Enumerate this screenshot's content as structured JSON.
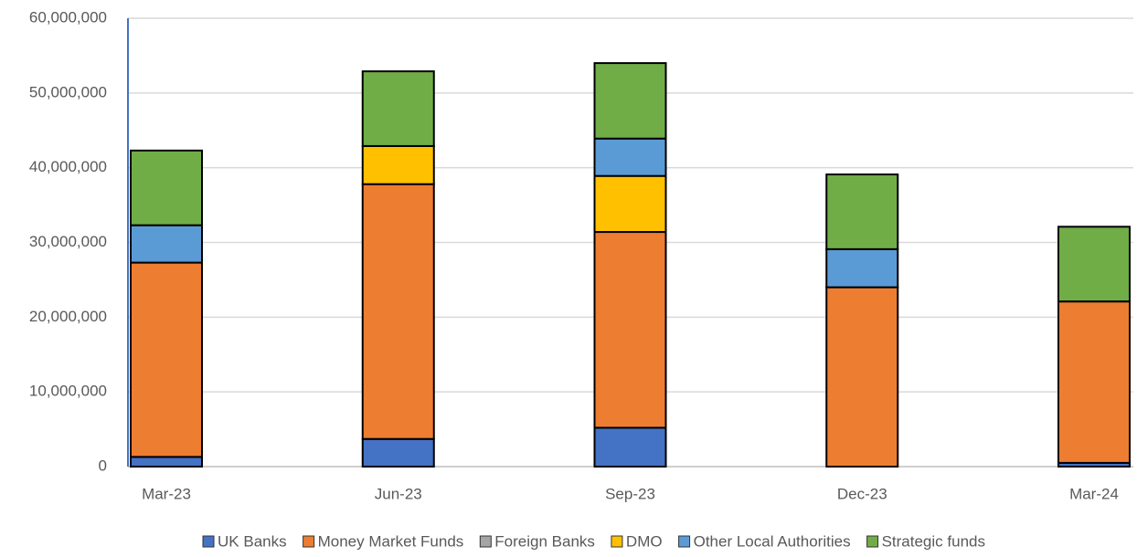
{
  "chart_data": {
    "type": "stacked_bar",
    "categories": [
      "Mar-23",
      "Jun-23",
      "Sep-23",
      "Dec-23",
      "Mar-24"
    ],
    "series": [
      {
        "name": "UK Banks",
        "color": "#4472c4",
        "values": [
          1300000,
          3700000,
          5200000,
          0,
          500000
        ]
      },
      {
        "name": "Money Market Funds",
        "color": "#ed7d31",
        "values": [
          26000000,
          34100000,
          26200000,
          24000000,
          21600000
        ]
      },
      {
        "name": "Foreign Banks",
        "color": "#a5a5a5",
        "values": [
          0,
          0,
          0,
          0,
          0
        ]
      },
      {
        "name": "DMO",
        "color": "#ffc000",
        "values": [
          0,
          5100000,
          7500000,
          0,
          0
        ]
      },
      {
        "name": "Other Local Authorities",
        "color": "#5b9bd5",
        "values": [
          5000000,
          0,
          5000000,
          5100000,
          0
        ]
      },
      {
        "name": "Strategic funds",
        "color": "#70ad47",
        "values": [
          10000000,
          10000000,
          10100000,
          10000000,
          10000000
        ]
      }
    ],
    "ylim": [
      0,
      60000000
    ],
    "yticks": [
      0,
      {
        "value": 10000000,
        "label": "10,000,000"
      },
      {
        "value": 20000000,
        "label": "20,000,000"
      },
      {
        "value": 30000000,
        "label": "30,000,000"
      },
      {
        "value": 40000000,
        "label": "40,000,000"
      },
      {
        "value": 50000000,
        "label": "50,000,000"
      },
      {
        "value": 60000000,
        "label": "60,000,000"
      }
    ],
    "grid": true,
    "legend": "bottom"
  }
}
